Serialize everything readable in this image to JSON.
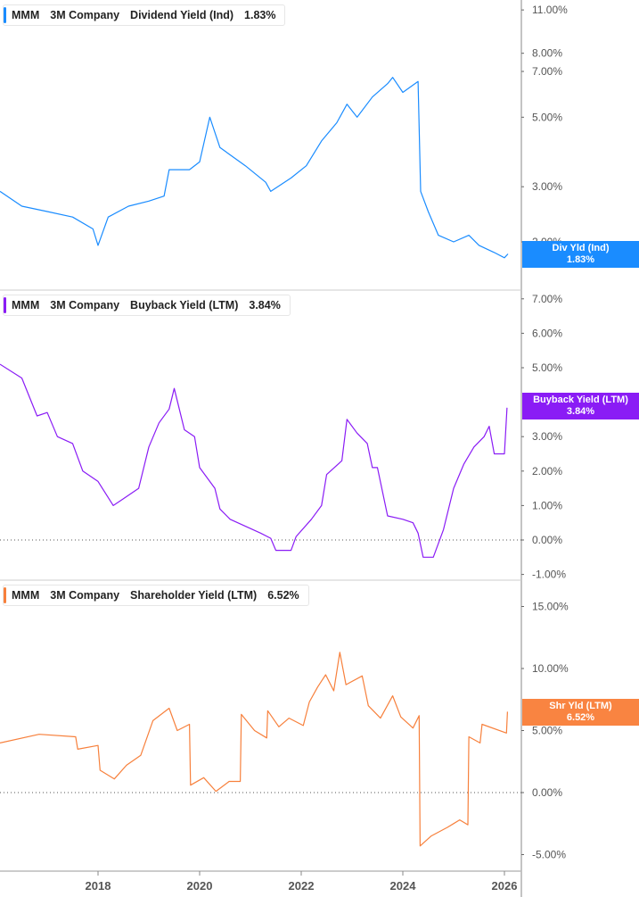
{
  "colors": {
    "dividend": "#1a8cff",
    "buyback": "#8a1cf5",
    "shareholder": "#f7803c"
  },
  "chart_data": [
    {
      "type": "line",
      "scale": "log",
      "ticker": "MMM",
      "company": "3M Company",
      "metric": "Dividend Yield (Ind)",
      "current": "1.83%",
      "badge_label": "Div Yld (Ind)",
      "badge_value": "1.83%",
      "yticks": [
        2,
        3,
        5,
        7,
        8,
        11
      ],
      "ytick_labels": [
        "2.00%",
        "3.00%",
        "5.00%",
        "7.00%",
        "8.00%",
        "11.00%"
      ],
      "x": [
        2016.07,
        2016.5,
        2017.0,
        2017.5,
        2017.9,
        2018.0,
        2018.2,
        2018.6,
        2019.0,
        2019.3,
        2019.4,
        2019.8,
        2020.0,
        2020.2,
        2020.4,
        2020.9,
        2021.3,
        2021.4,
        2021.8,
        2022.1,
        2022.4,
        2022.7,
        2022.9,
        2023.1,
        2023.4,
        2023.7,
        2023.8,
        2024.0,
        2024.3,
        2024.35,
        2024.5,
        2024.7,
        2025.0,
        2025.3,
        2025.5,
        2025.8,
        2026.0,
        2026.07
      ],
      "y": [
        2.9,
        2.6,
        2.5,
        2.4,
        2.2,
        1.95,
        2.4,
        2.6,
        2.7,
        2.8,
        3.4,
        3.4,
        3.6,
        5.0,
        4.0,
        3.5,
        3.1,
        2.9,
        3.2,
        3.5,
        4.2,
        4.8,
        5.5,
        5.0,
        5.8,
        6.4,
        6.7,
        6.0,
        6.5,
        2.9,
        2.5,
        2.1,
        2.0,
        2.1,
        1.95,
        1.85,
        1.78,
        1.83
      ]
    },
    {
      "type": "line",
      "scale": "linear",
      "ticker": "MMM",
      "company": "3M Company",
      "metric": "Buyback Yield (LTM)",
      "current": "3.84%",
      "badge_label": "Buyback Yield (LTM)",
      "badge_value": "3.84%",
      "yticks": [
        -1,
        0,
        1,
        2,
        3,
        5,
        6,
        7
      ],
      "ytick_labels": [
        "-1.00%",
        "0.00%",
        "1.00%",
        "2.00%",
        "3.00%",
        "5.00%",
        "6.00%",
        "7.00%"
      ],
      "x": [
        2016.07,
        2016.5,
        2016.8,
        2017.0,
        2017.2,
        2017.5,
        2017.7,
        2018.0,
        2018.3,
        2018.5,
        2018.8,
        2019.0,
        2019.2,
        2019.4,
        2019.5,
        2019.6,
        2019.7,
        2019.9,
        2020.0,
        2020.3,
        2020.4,
        2020.6,
        2020.9,
        2021.2,
        2021.4,
        2021.5,
        2021.8,
        2021.9,
        2022.2,
        2022.4,
        2022.5,
        2022.8,
        2022.9,
        2023.1,
        2023.3,
        2023.4,
        2023.5,
        2023.7,
        2024.0,
        2024.2,
        2024.3,
        2024.4,
        2024.6,
        2024.8,
        2025.0,
        2025.2,
        2025.4,
        2025.6,
        2025.7,
        2025.8,
        2026.0,
        2026.05
      ],
      "y": [
        5.1,
        4.7,
        3.6,
        3.7,
        3.0,
        2.8,
        2.0,
        1.7,
        1.0,
        1.2,
        1.5,
        2.7,
        3.4,
        3.8,
        4.4,
        3.8,
        3.2,
        3.0,
        2.1,
        1.5,
        0.9,
        0.6,
        0.4,
        0.2,
        0.05,
        -0.3,
        -0.3,
        0.1,
        0.6,
        1.0,
        1.9,
        2.3,
        3.5,
        3.1,
        2.8,
        2.1,
        2.1,
        0.7,
        0.6,
        0.5,
        0.2,
        -0.5,
        -0.5,
        0.3,
        1.5,
        2.2,
        2.7,
        3.0,
        3.3,
        2.5,
        2.5,
        3.84
      ]
    },
    {
      "type": "line",
      "scale": "linear",
      "ticker": "MMM",
      "company": "3M Company",
      "metric": "Shareholder Yield (LTM)",
      "current": "6.52%",
      "badge_label": "Shr Yld (LTM)",
      "badge_value": "6.52%",
      "yticks": [
        -5,
        0,
        5,
        10,
        15
      ],
      "ytick_labels": [
        "-5.00%",
        "0.00%",
        "5.00%",
        "10.00%",
        "15.00%"
      ],
      "x": [
        2016.07,
        2016.84,
        2017.56,
        2017.6,
        2018.0,
        2018.04,
        2018.32,
        2018.56,
        2018.84,
        2019.08,
        2019.4,
        2019.56,
        2019.8,
        2019.82,
        2020.08,
        2020.32,
        2020.58,
        2020.8,
        2020.82,
        2021.08,
        2021.32,
        2021.34,
        2021.56,
        2021.76,
        2022.04,
        2022.16,
        2022.32,
        2022.48,
        2022.64,
        2022.76,
        2022.88,
        2023.2,
        2023.32,
        2023.56,
        2023.8,
        2023.96,
        2024.2,
        2024.32,
        2024.34,
        2024.56,
        2024.88,
        2025.12,
        2025.28,
        2025.3,
        2025.52,
        2025.56,
        2026.04,
        2026.06
      ],
      "y": [
        4.0,
        4.7,
        4.5,
        3.5,
        3.8,
        1.8,
        1.1,
        2.2,
        3.0,
        5.8,
        6.8,
        5.0,
        5.5,
        0.6,
        1.2,
        0.1,
        0.9,
        0.9,
        6.3,
        5.0,
        4.4,
        6.6,
        5.3,
        6.0,
        5.4,
        7.3,
        8.5,
        9.5,
        8.2,
        11.3,
        8.7,
        9.4,
        7.0,
        6.0,
        7.8,
        6.1,
        5.2,
        6.2,
        -4.3,
        -3.5,
        -2.8,
        -2.2,
        -2.6,
        4.5,
        4.0,
        5.5,
        4.8,
        6.52
      ]
    }
  ],
  "xaxis": {
    "ticks": [
      2018,
      2020,
      2022,
      2024,
      2026
    ],
    "labels": [
      "2018",
      "2020",
      "2022",
      "2024",
      "2026"
    ]
  }
}
